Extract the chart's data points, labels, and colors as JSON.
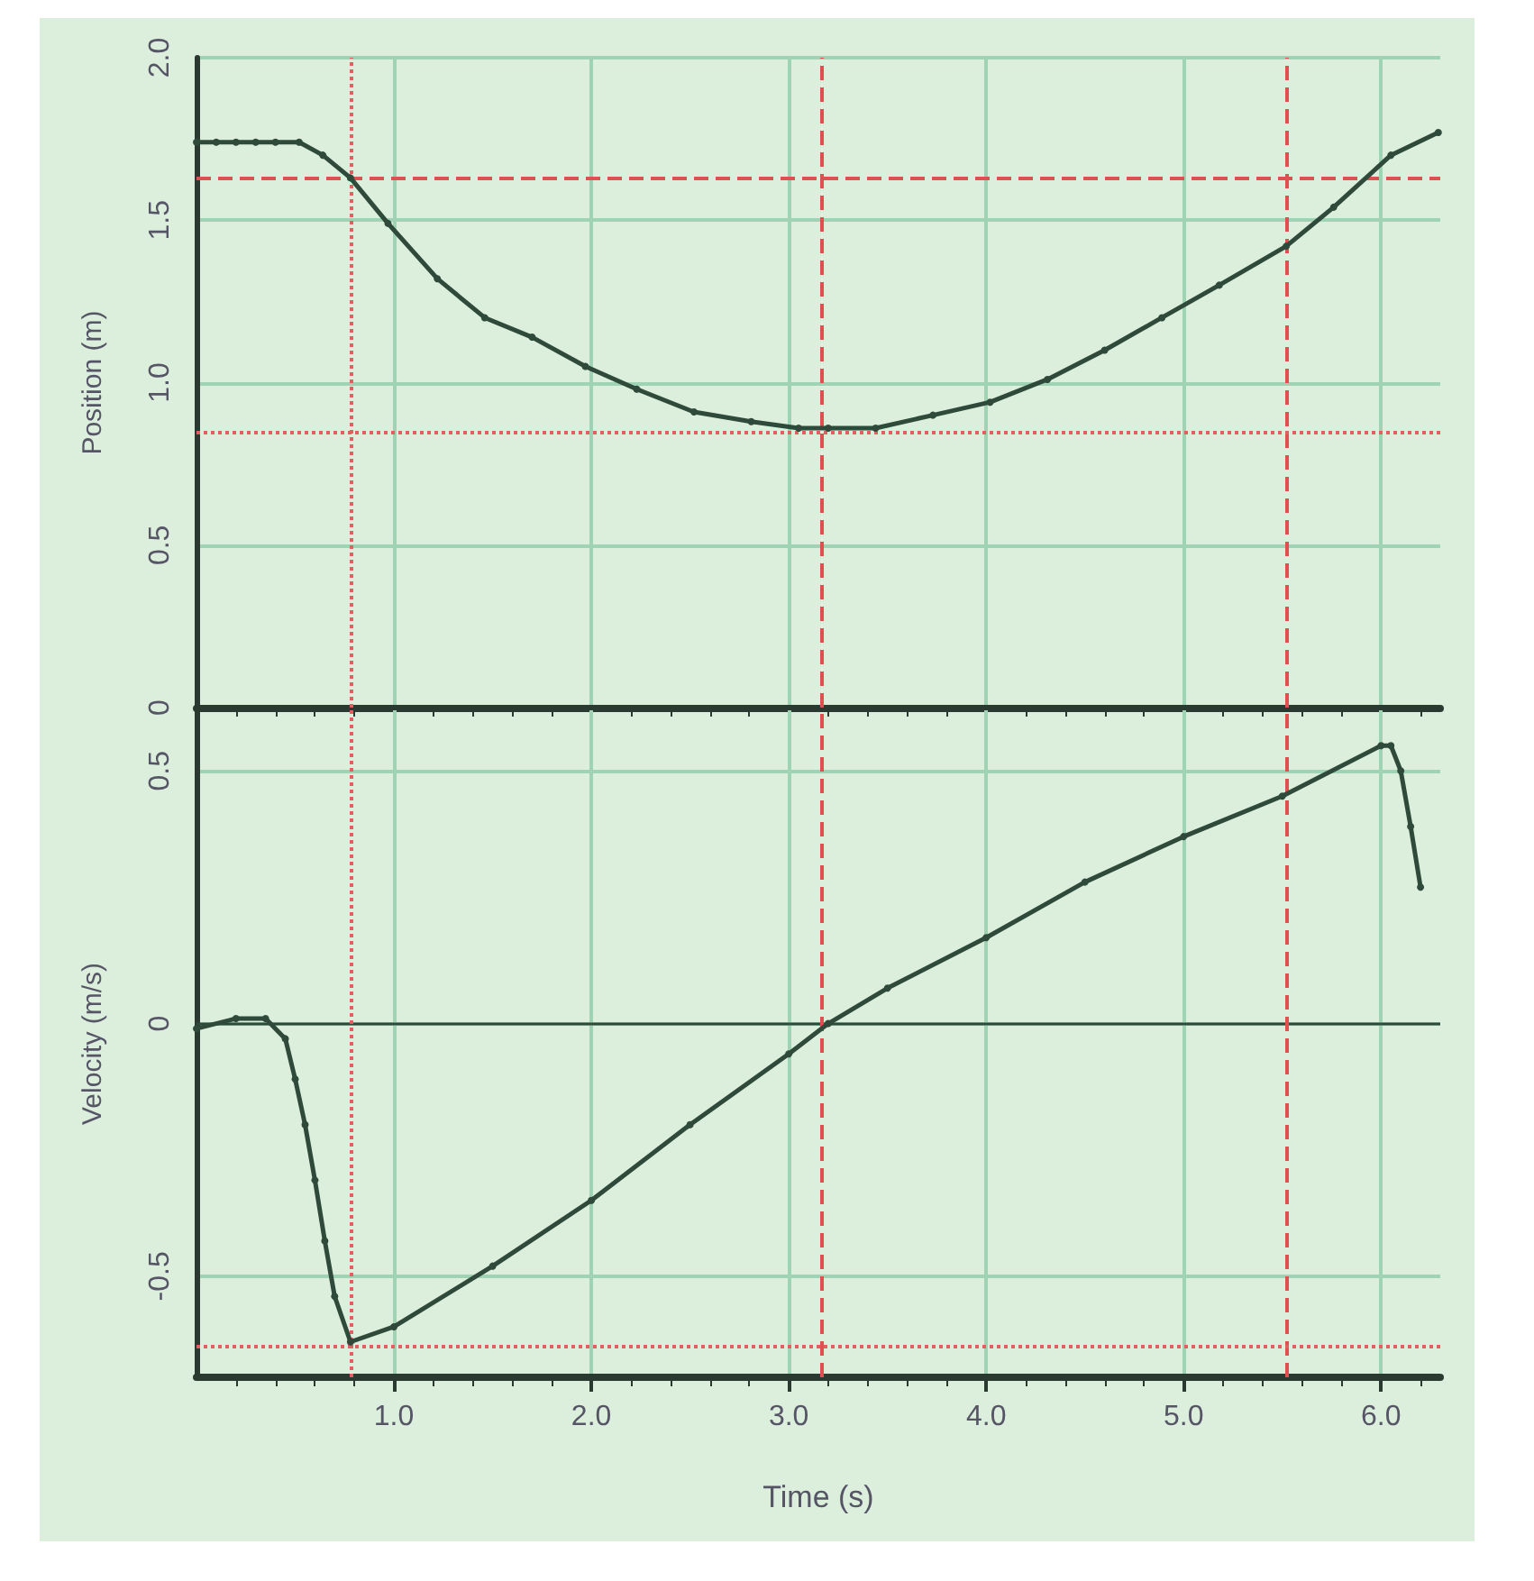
{
  "chart_data": [
    {
      "type": "line",
      "ylabel": "Position (m)",
      "xlim": [
        0,
        6.3
      ],
      "ylim": [
        0,
        2.0
      ],
      "xticks": [
        1,
        2,
        3,
        4,
        5,
        6
      ],
      "yticks": [
        0,
        0.5,
        {
          "value": 1,
          "label": "1.0"
        },
        1.5,
        {
          "value": 2,
          "label": "2.0"
        }
      ],
      "tick_labels": "y",
      "grid": true,
      "marker": "circle",
      "line_style": "solid",
      "series": [
        {
          "color": "#2f4a3a",
          "x": [
            0,
            0.1,
            0.2,
            0.3,
            0.4,
            0.52,
            0.64,
            0.78,
            0.97,
            1.22,
            1.46,
            1.7,
            1.97,
            2.23,
            2.52,
            2.81,
            3.05,
            3.2,
            3.44,
            3.73,
            4.02,
            4.31,
            4.6,
            4.89,
            5.18,
            5.52,
            5.76,
            6.05,
            6.29
          ],
          "values": [
            1.74,
            1.74,
            1.74,
            1.74,
            1.74,
            1.74,
            1.7,
            1.63,
            1.49,
            1.32,
            1.2,
            1.14,
            1.05,
            0.98,
            0.91,
            0.88,
            0.86,
            0.86,
            0.86,
            0.9,
            0.94,
            1.01,
            1.1,
            1.2,
            1.3,
            1.42,
            1.54,
            1.7,
            1.77
          ]
        }
      ],
      "ref_lines": [
        {
          "axis": "x",
          "value": 0.78,
          "color": "#e06060",
          "line_style": "dotted"
        },
        {
          "axis": "x",
          "value": 3.17,
          "color": "#e05050",
          "line_style": "dashed"
        },
        {
          "axis": "x",
          "value": 5.52,
          "color": "#e05050",
          "line_style": "dashed"
        },
        {
          "axis": "y",
          "value": 1.63,
          "color": "#e05050",
          "line_style": "dashed"
        },
        {
          "axis": "y",
          "value": 0.85,
          "color": "#e06060",
          "line_style": "dotted"
        }
      ]
    },
    {
      "type": "line",
      "xlabel": "Time (s)",
      "ylabel": "Velocity (m/s)",
      "xlim": [
        0,
        6.3
      ],
      "ylim": [
        -0.7,
        0.62
      ],
      "xticks": [
        {
          "value": 1,
          "label": "1.0"
        },
        {
          "value": 2,
          "label": "2.0"
        },
        {
          "value": 3,
          "label": "3.0"
        },
        {
          "value": 4,
          "label": "4.0"
        },
        {
          "value": 5,
          "label": "5.0"
        },
        {
          "value": 6,
          "label": "6.0"
        }
      ],
      "yticks": [
        -0.5,
        0,
        0.5
      ],
      "grid": true,
      "marker": "circle",
      "line_style": "solid",
      "series": [
        {
          "color": "#2f4a3a",
          "x": [
            0,
            0.2,
            0.35,
            0.45,
            0.5,
            0.55,
            0.6,
            0.65,
            0.7,
            0.78,
            1.0,
            1.5,
            2.0,
            2.5,
            3.0,
            3.2,
            3.5,
            4.0,
            4.5,
            5.0,
            5.5,
            6.0,
            6.05,
            6.1,
            6.15,
            6.2
          ],
          "values": [
            -0.01,
            0.01,
            0.01,
            -0.03,
            -0.11,
            -0.2,
            -0.31,
            -0.43,
            -0.54,
            -0.63,
            -0.6,
            -0.48,
            -0.35,
            -0.2,
            -0.06,
            0.0,
            0.07,
            0.17,
            0.28,
            0.37,
            0.45,
            0.55,
            0.55,
            0.5,
            0.39,
            0.27
          ]
        }
      ],
      "ref_lines": [
        {
          "axis": "y",
          "value": 0,
          "color": "#2f4a3a",
          "line_style": "solid"
        },
        {
          "axis": "x",
          "value": 0.78,
          "color": "#e06060",
          "line_style": "dotted"
        },
        {
          "axis": "x",
          "value": 3.17,
          "color": "#e05050",
          "line_style": "dashed"
        },
        {
          "axis": "x",
          "value": 5.52,
          "color": "#e05050",
          "line_style": "dashed"
        },
        {
          "axis": "y",
          "value": -0.64,
          "color": "#e06060",
          "line_style": "dotted"
        }
      ]
    }
  ]
}
